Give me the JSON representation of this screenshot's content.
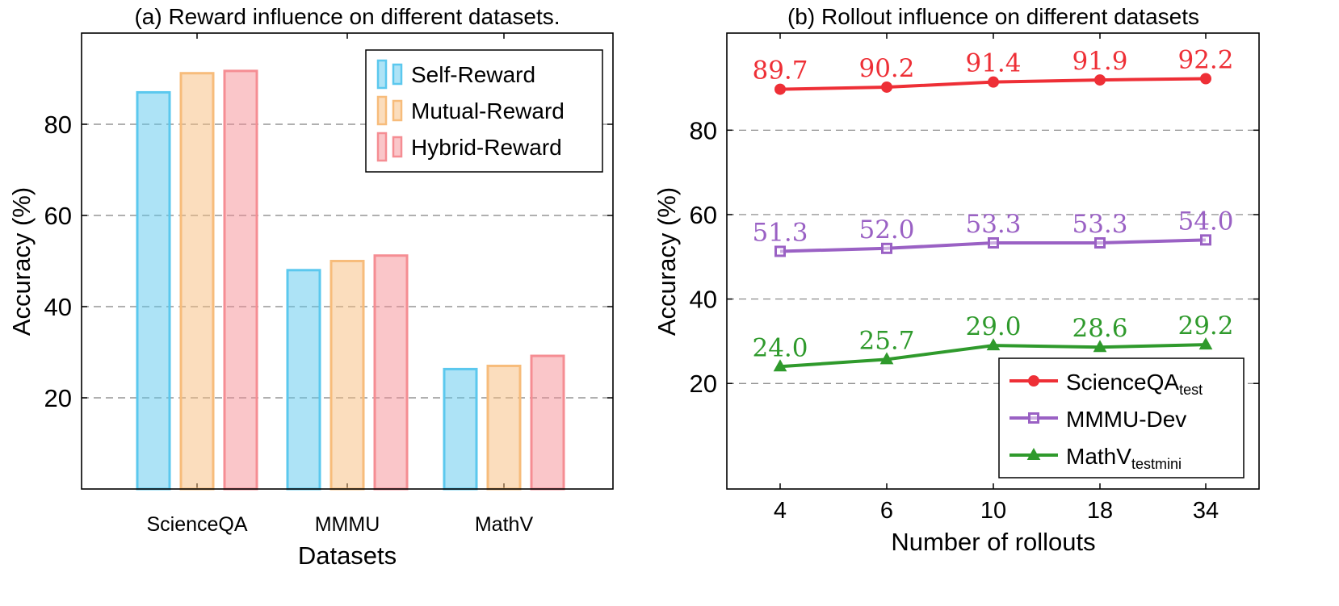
{
  "colors": {
    "self_reward": "#5bc8ee",
    "mutual_reward": "#f7bc7b",
    "hybrid_reward": "#f58d93",
    "scienceqa": "#ee2f36",
    "mmmu": "#9a61c4",
    "mathv": "#2f9a2c",
    "grid": "#808080",
    "axis": "#000000"
  },
  "chart_data": [
    {
      "type": "bar",
      "title": "(a) Reward influence on different datasets.",
      "xlabel": "Datasets",
      "ylabel": "Accuracy (%)",
      "categories": [
        "ScienceQA",
        "MMMU",
        "MathV"
      ],
      "series": [
        {
          "name": "Self-Reward",
          "values": [
            87.0,
            48.0,
            26.3
          ]
        },
        {
          "name": "Mutual-Reward",
          "values": [
            91.2,
            50.0,
            27.0
          ]
        },
        {
          "name": "Hybrid-Reward",
          "values": [
            91.7,
            51.2,
            29.2
          ]
        }
      ],
      "ylim": [
        0,
        100
      ],
      "yticks": [
        20,
        40,
        60,
        80
      ],
      "grid": "horizontal dashed",
      "legend_position": "top-right"
    },
    {
      "type": "line",
      "title": "(b) Rollout influence on different datasets",
      "xlabel": "Number of rollouts",
      "ylabel": "Accuracy (%)",
      "x": [
        "4",
        "6",
        "10",
        "18",
        "34"
      ],
      "series": [
        {
          "name": "ScienceQA",
          "name_sub": "test",
          "marker": "circle",
          "values": [
            89.7,
            90.2,
            91.4,
            91.9,
            92.2
          ],
          "labels": [
            "89.7",
            "90.2",
            "91.4",
            "91.9",
            "92.2"
          ]
        },
        {
          "name": "MMMU-Dev",
          "name_sub": "",
          "marker": "square",
          "values": [
            51.3,
            52.0,
            53.3,
            53.3,
            54.0
          ],
          "labels": [
            "51.3",
            "52.0",
            "53.3",
            "53.3",
            "54.0"
          ]
        },
        {
          "name": "MathV",
          "name_sub": "testmini",
          "marker": "triangle",
          "values": [
            24.0,
            25.7,
            29.0,
            28.6,
            29.2
          ],
          "labels": [
            "24.0",
            "25.7",
            "29.0",
            "28.6",
            "29.2"
          ]
        }
      ],
      "ylim": [
        -5,
        103
      ],
      "yticks": [
        20,
        40,
        60,
        80
      ],
      "grid": "horizontal dashed",
      "legend_position": "bottom-right"
    }
  ]
}
